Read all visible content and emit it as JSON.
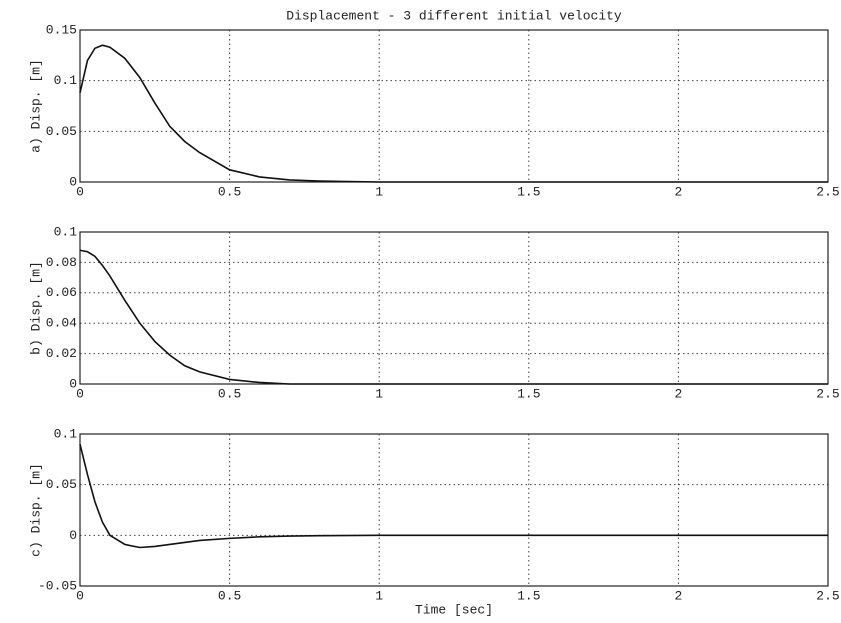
{
  "chart_data": [
    {
      "type": "line",
      "title": "Displacement - 3 different initial velocity",
      "ylabel": "a) Disp. [m]",
      "x": [
        0,
        0.025,
        0.05,
        0.075,
        0.1,
        0.15,
        0.2,
        0.25,
        0.3,
        0.35,
        0.4,
        0.5,
        0.6,
        0.7,
        0.8,
        1,
        1.5,
        2,
        2.5
      ],
      "values": [
        0.088,
        0.12,
        0.132,
        0.135,
        0.133,
        0.122,
        0.103,
        0.078,
        0.055,
        0.04,
        0.029,
        0.012,
        0.005,
        0.002,
        0.001,
        0,
        0,
        0,
        0
      ],
      "color": "#111111",
      "xlim": [
        0,
        2.5
      ],
      "xticks": [
        0,
        0.5,
        1,
        1.5,
        2,
        2.5
      ],
      "ylim": [
        0,
        0.15
      ],
      "yticks": [
        0,
        0.05,
        0.1,
        0.15
      ],
      "grid": true
    },
    {
      "type": "line",
      "ylabel": "b) Disp. [m]",
      "x": [
        0,
        0.025,
        0.05,
        0.075,
        0.1,
        0.15,
        0.2,
        0.25,
        0.3,
        0.35,
        0.4,
        0.5,
        0.6,
        0.7,
        0.8,
        1,
        1.5,
        2,
        2.5
      ],
      "values": [
        0.088,
        0.087,
        0.084,
        0.078,
        0.071,
        0.055,
        0.04,
        0.028,
        0.019,
        0.012,
        0.008,
        0.003,
        0.001,
        0,
        0,
        0,
        0,
        0,
        0
      ],
      "color": "#111111",
      "xlim": [
        0,
        2.5
      ],
      "xticks": [
        0,
        0.5,
        1,
        1.5,
        2,
        2.5
      ],
      "ylim": [
        0,
        0.1
      ],
      "yticks": [
        0,
        0.02,
        0.04,
        0.06,
        0.08,
        0.1
      ],
      "grid": true
    },
    {
      "type": "line",
      "ylabel": "c) Disp. [m]",
      "xlabel": "Time [sec]",
      "x": [
        0,
        0.025,
        0.05,
        0.075,
        0.1,
        0.15,
        0.2,
        0.25,
        0.3,
        0.35,
        0.4,
        0.5,
        0.6,
        0.7,
        0.8,
        1,
        1.5,
        2,
        2.5
      ],
      "values": [
        0.09,
        0.06,
        0.033,
        0.013,
        0,
        -0.009,
        -0.012,
        -0.011,
        -0.009,
        -0.007,
        -0.005,
        -0.003,
        -0.0015,
        -0.0007,
        -0.0003,
        0,
        0,
        0,
        0
      ],
      "color": "#111111",
      "xlim": [
        0,
        2.5
      ],
      "xticks": [
        0,
        0.5,
        1,
        1.5,
        2,
        2.5
      ],
      "ylim": [
        -0.05,
        0.1
      ],
      "yticks": [
        -0.05,
        0,
        0.05,
        0.1
      ],
      "grid": true
    }
  ]
}
